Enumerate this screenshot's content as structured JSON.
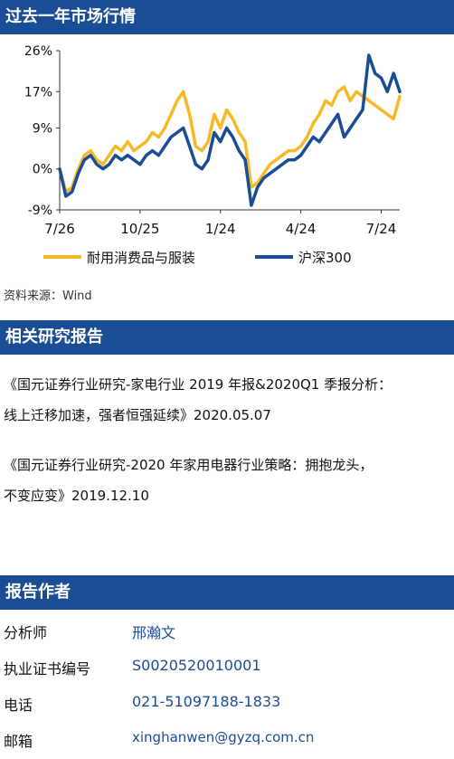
{
  "section_market": {
    "title": "过去一年市场行情"
  },
  "chart_data": {
    "type": "line",
    "title": "",
    "xlabel": "",
    "ylabel": "",
    "ylim": [
      -9,
      26
    ],
    "y_ticks": [
      "26%",
      "17%",
      "9%",
      "0%",
      "-9%"
    ],
    "y_tick_values": [
      26,
      17,
      9,
      0,
      -9
    ],
    "x_ticks": [
      "7/26",
      "10/25",
      "1/24",
      "4/24",
      "7/24"
    ],
    "x_tick_positions": [
      0,
      13,
      26,
      39,
      52
    ],
    "legend_placement": "bottom",
    "grid": false,
    "series": [
      {
        "name": "耐用消费品与服装",
        "color": "#f7b928",
        "x": [
          0,
          1,
          2,
          3,
          4,
          5,
          6,
          7,
          8,
          9,
          10,
          11,
          12,
          13,
          14,
          15,
          16,
          17,
          18,
          19,
          20,
          21,
          22,
          23,
          24,
          25,
          26,
          27,
          28,
          29,
          30,
          31,
          32,
          33,
          34,
          35,
          36,
          37,
          38,
          39,
          40,
          41,
          42,
          43,
          44,
          45,
          46,
          47,
          48,
          49,
          50,
          51,
          52,
          53,
          54,
          55
        ],
        "values": [
          0,
          -5,
          -4,
          0,
          3,
          4,
          2,
          1,
          3,
          5,
          4,
          6,
          4,
          5,
          6,
          8,
          7,
          9,
          12,
          15,
          17,
          12,
          5,
          4,
          6,
          12,
          9,
          13,
          11,
          8,
          6,
          -4,
          -3,
          -1,
          1,
          2,
          3,
          4,
          4,
          5,
          7,
          10,
          12,
          15,
          14,
          17,
          18,
          15,
          17,
          16,
          15,
          14,
          13,
          12,
          11,
          16
        ],
        "values_note": ""
      },
      {
        "name": "沪深300",
        "color": "#1a4d94",
        "x": [
          0,
          1,
          2,
          3,
          4,
          5,
          6,
          7,
          8,
          9,
          10,
          11,
          12,
          13,
          14,
          15,
          16,
          17,
          18,
          19,
          20,
          21,
          22,
          23,
          24,
          25,
          26,
          27,
          28,
          29,
          30,
          31,
          32,
          33,
          34,
          35,
          36,
          37,
          38,
          39,
          40,
          41,
          42,
          43,
          44,
          45,
          46,
          47,
          48,
          49,
          50,
          51,
          52,
          53,
          54,
          55
        ],
        "values": [
          0,
          -6,
          -5,
          -1,
          2,
          3,
          1,
          0,
          1,
          3,
          2,
          3,
          2,
          1,
          3,
          4,
          3,
          5,
          7,
          8,
          9,
          5,
          1,
          0,
          2,
          8,
          6,
          9,
          7,
          4,
          2,
          -8,
          -4,
          -2,
          -1,
          0,
          1,
          2,
          2,
          3,
          5,
          7,
          6,
          8,
          10,
          12,
          7,
          9,
          11,
          13,
          25,
          21,
          20,
          17,
          21,
          17
        ],
        "values_note": ""
      }
    ]
  },
  "source": {
    "text": "资料来源：Wind"
  },
  "section_related": {
    "title": "相关研究报告"
  },
  "reports": [
    {
      "line1": "《国元证券行业研究-家电行业 2019 年报&2020Q1 季报分析：",
      "line2": "线上迁移加速，强者恒强延续》2020.05.07"
    },
    {
      "line1": "《国元证券行业研究-2020 年家用电器行业策略：拥抱龙头，",
      "line2": "不变应变》2019.12.10"
    }
  ],
  "section_author": {
    "title": "报告作者"
  },
  "author": {
    "analyst_label": "分析师",
    "analyst_name": "邢瀚文",
    "license_label": "执业证书编号",
    "license_no": "S0020520010001",
    "phone_label": "电话",
    "phone": "021-51097188-1833",
    "email_label": "邮箱",
    "email": "xinghanwen@gyzq.com.cn"
  }
}
